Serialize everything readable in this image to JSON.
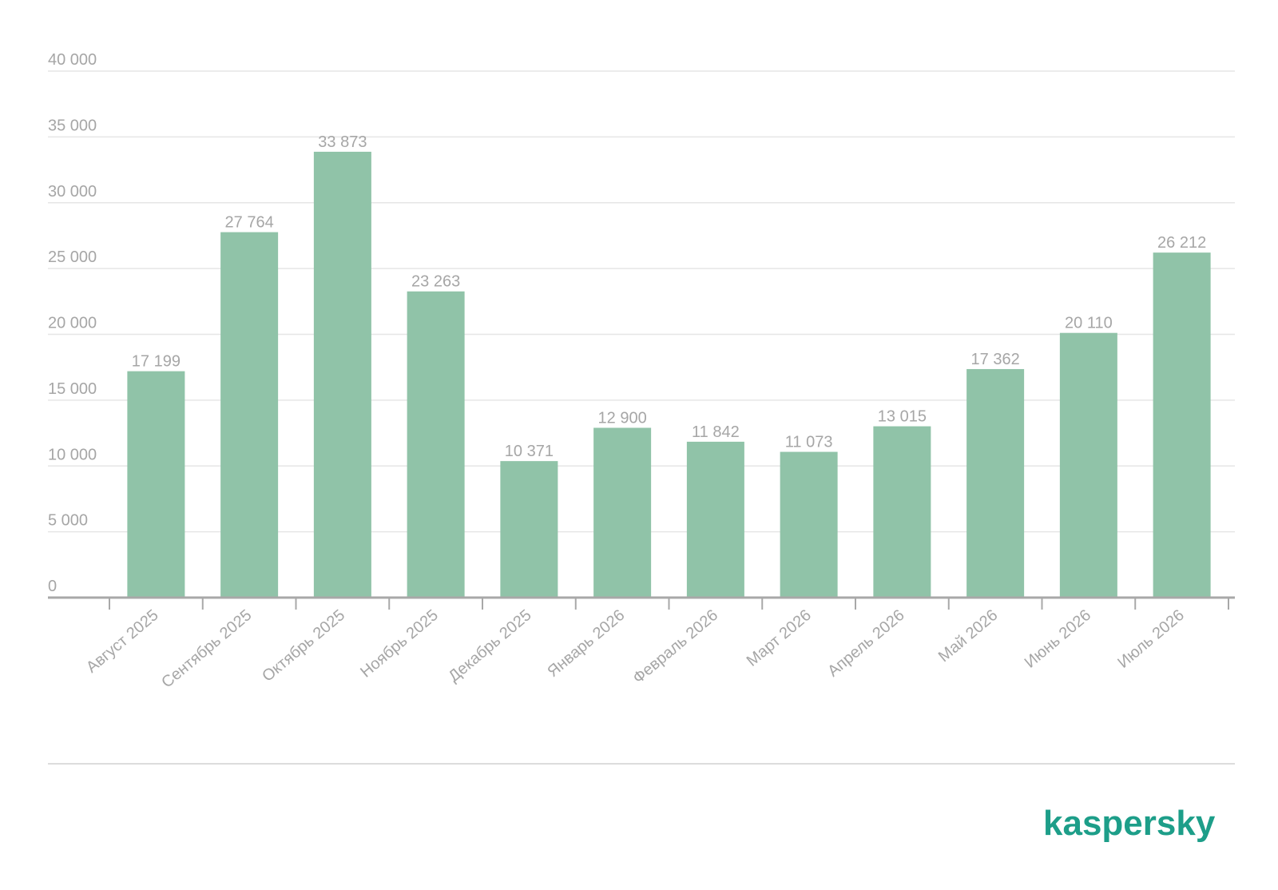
{
  "chart_data": {
    "type": "bar",
    "categories": [
      "Август 2025",
      "Сентябрь 2025",
      "Октябрь 2025",
      "Ноябрь 2025",
      "Декабрь 2025",
      "Январь 2026",
      "Февраль 2026",
      "Март 2026",
      "Апрель 2026",
      "Май 2026",
      "Июнь 2026",
      "Июль 2026"
    ],
    "values": [
      17199,
      27764,
      33873,
      23263,
      10371,
      12900,
      11842,
      11073,
      13015,
      17362,
      20110,
      26212
    ],
    "value_labels": [
      "17 199",
      "27 764",
      "33 873",
      "23 263",
      "10 371",
      "12 900",
      "11 842",
      "11 073",
      "13 015",
      "17 362",
      "20 110",
      "26 212"
    ],
    "y_ticks": [
      0,
      5000,
      10000,
      15000,
      20000,
      25000,
      30000,
      35000,
      40000
    ],
    "y_tick_labels": [
      "0",
      "5 000",
      "10 000",
      "15 000",
      "20 000",
      "25 000",
      "30 000",
      "35 000",
      "40 000"
    ],
    "ylim": [
      0,
      40000
    ],
    "title": "",
    "xlabel": "",
    "ylabel": "",
    "grid": true,
    "bar_color": "#90c3a8"
  },
  "brand": {
    "logo_text": "kaspersky",
    "color": "#1d9e89"
  }
}
